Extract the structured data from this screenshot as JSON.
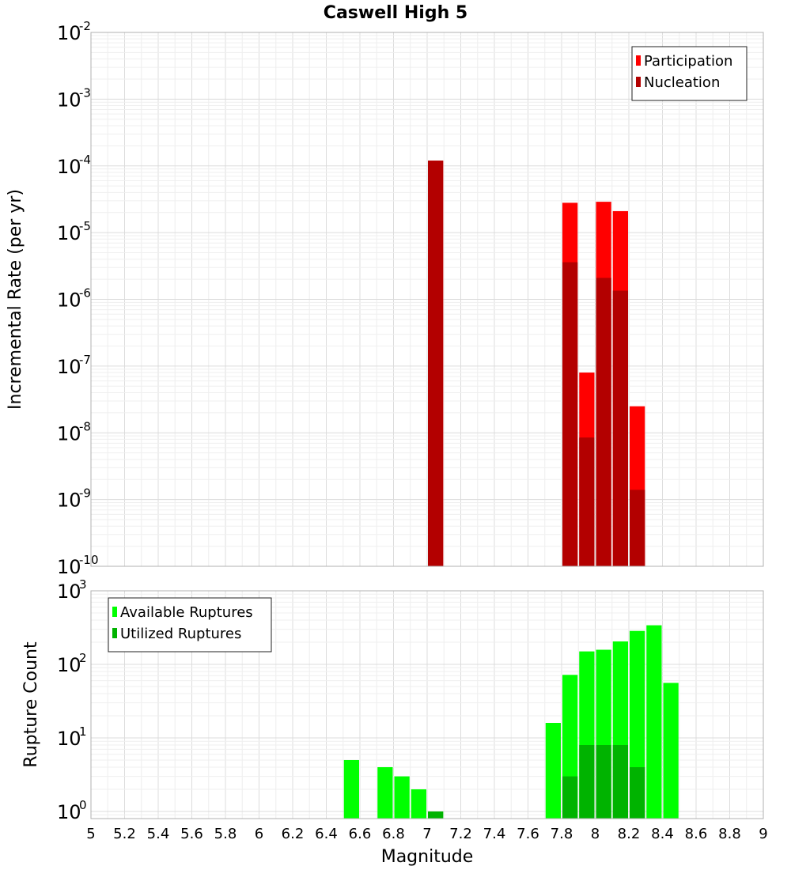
{
  "chart_data": [
    {
      "type": "bar",
      "panel": "top",
      "title": "Caswell High 5",
      "ylabel": "Incremental Rate (per yr)",
      "xlim": [
        5,
        9
      ],
      "ylim": [
        1e-10,
        0.01
      ],
      "y_scale": "log",
      "grid": true,
      "bar_width": 0.1,
      "legend_position": "top-right",
      "y_ticks": [
        {
          "base": "10",
          "exp": "-2",
          "value": 0.01
        },
        {
          "base": "10",
          "exp": "-3",
          "value": 0.001
        },
        {
          "base": "10",
          "exp": "-4",
          "value": 0.0001
        },
        {
          "base": "10",
          "exp": "-5",
          "value": 1e-05
        },
        {
          "base": "10",
          "exp": "-6",
          "value": 1e-06
        },
        {
          "base": "10",
          "exp": "-7",
          "value": 1e-07
        },
        {
          "base": "10",
          "exp": "-8",
          "value": 1e-08
        },
        {
          "base": "10",
          "exp": "-9",
          "value": 1e-09
        },
        {
          "base": "10",
          "exp": "-10",
          "value": 1e-10
        }
      ],
      "series": [
        {
          "name": "Participation",
          "color": "#ff0000",
          "x": [
            7.05,
            7.85,
            7.95,
            8.05,
            8.15,
            8.25
          ],
          "values": [
            0.00012,
            2.8e-05,
            8e-08,
            2.9e-05,
            2.1e-05,
            2.5e-08
          ]
        },
        {
          "name": "Nucleation",
          "color": "#b30000",
          "x": [
            7.05,
            7.85,
            7.95,
            8.05,
            8.15,
            8.25
          ],
          "values": [
            0.00012,
            3.6e-06,
            8.5e-09,
            2.1e-06,
            1.35e-06,
            1.4e-09
          ]
        }
      ]
    },
    {
      "type": "bar",
      "panel": "bottom",
      "xlabel": "Magnitude",
      "ylabel": "Rupture Count",
      "xlim": [
        5,
        9
      ],
      "ylim": [
        0.8,
        1000
      ],
      "y_scale": "log",
      "grid": true,
      "bar_width": 0.1,
      "legend_position": "top-left",
      "x_ticks": [
        "5",
        "5.2",
        "5.4",
        "5.6",
        "5.8",
        "6",
        "6.2",
        "6.4",
        "6.6",
        "6.8",
        "7",
        "7.2",
        "7.4",
        "7.6",
        "7.8",
        "8",
        "8.2",
        "8.4",
        "8.6",
        "8.8",
        "9"
      ],
      "y_ticks": [
        {
          "base": "10",
          "exp": "3",
          "value": 1000
        },
        {
          "base": "10",
          "exp": "2",
          "value": 100
        },
        {
          "base": "10",
          "exp": "1",
          "value": 10
        },
        {
          "base": "10",
          "exp": "0",
          "value": 1
        }
      ],
      "series": [
        {
          "name": "Available Ruptures",
          "color": "#00ff00",
          "x": [
            6.55,
            6.75,
            6.85,
            6.95,
            7.05,
            7.75,
            7.85,
            7.95,
            8.05,
            8.15,
            8.25,
            8.35,
            8.45
          ],
          "values": [
            5,
            4,
            3,
            2,
            1,
            16,
            72,
            150,
            158,
            205,
            285,
            340,
            56
          ]
        },
        {
          "name": "Utilized Ruptures",
          "color": "#00b300",
          "x": [
            7.05,
            7.85,
            7.95,
            8.05,
            8.15,
            8.25
          ],
          "values": [
            1,
            3,
            8,
            8,
            8,
            4
          ]
        }
      ]
    }
  ]
}
